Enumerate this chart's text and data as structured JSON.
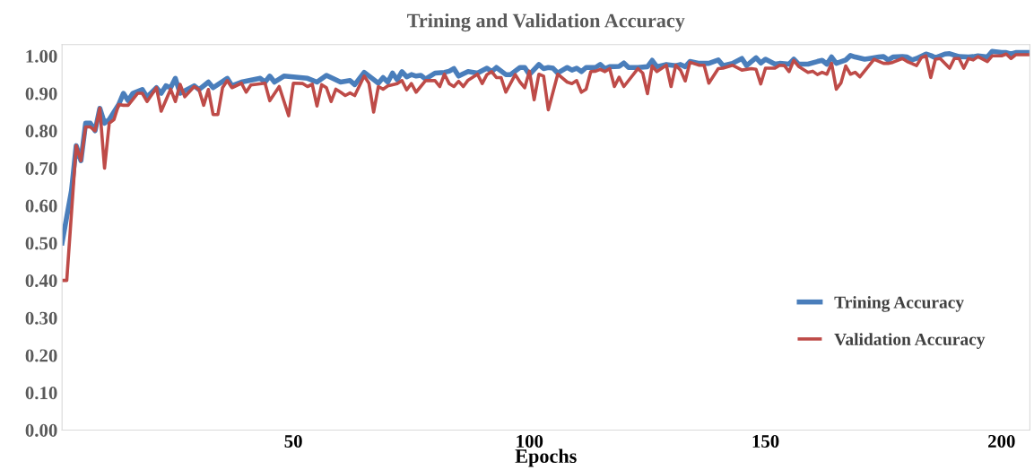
{
  "chart_data": {
    "type": "line",
    "title": "Trining and Validation Accuracy",
    "xlabel": "Epochs",
    "xlim": [
      1,
      206
    ],
    "xticks": [
      50,
      100,
      150,
      200
    ],
    "ylim": [
      0,
      1.03
    ],
    "yticks": [
      {
        "value": 0,
        "label": "0.00"
      },
      {
        "value": 0.1,
        "label": "0.10"
      },
      {
        "value": 0.2,
        "label": "0.20"
      },
      {
        "value": 0.3,
        "label": "0.30"
      },
      {
        "value": 0.4,
        "label": "0.40"
      },
      {
        "value": 0.5,
        "label": "0.50"
      },
      {
        "value": 0.6,
        "label": "0.60"
      },
      {
        "value": 0.7,
        "label": "0.70"
      },
      {
        "value": 0.8,
        "label": "0.80"
      },
      {
        "value": 0.9,
        "label": "0.90"
      },
      {
        "value": 1.0,
        "label": "1.00"
      }
    ],
    "grid": false,
    "legend": "lower right",
    "marker": "none",
    "line_style": "solid",
    "series": [
      {
        "name": "Trining Accuracy",
        "color": "#4a7ebb",
        "x": [
          1,
          3,
          4,
          5,
          6,
          7,
          8,
          9,
          10,
          11,
          13,
          14,
          15,
          16,
          18,
          19,
          21,
          22,
          23,
          24,
          25,
          26,
          29,
          30,
          32,
          33,
          36,
          37,
          39,
          43,
          44,
          45,
          46,
          48,
          53,
          55,
          57,
          60,
          62,
          63,
          65,
          68,
          69,
          70,
          71,
          72,
          73,
          74,
          75,
          76,
          77,
          78,
          80,
          82,
          83,
          84,
          85,
          87,
          89,
          91,
          92,
          93,
          95,
          96,
          98,
          99,
          100,
          102,
          103,
          104,
          105,
          106,
          108,
          109,
          110,
          111,
          112,
          114,
          115,
          116,
          117,
          119,
          120,
          121,
          123,
          125,
          126,
          127,
          129,
          131,
          132,
          133,
          134,
          136,
          138,
          140,
          141,
          143,
          145,
          146,
          148,
          149,
          150,
          152,
          153,
          155,
          156,
          157,
          159,
          161,
          162,
          163,
          164,
          165,
          167,
          168,
          169,
          171,
          172,
          174,
          175,
          176,
          177,
          179,
          180,
          181,
          182,
          184,
          185,
          186,
          188,
          189,
          191,
          193,
          194,
          195,
          197,
          198,
          200,
          201,
          202,
          203,
          206
        ],
        "values": [
          0.5,
          0.64,
          0.76,
          0.72,
          0.82,
          0.82,
          0.8,
          0.86,
          0.82,
          0.83,
          0.87,
          0.9,
          0.88,
          0.9,
          0.91,
          0.89,
          0.915,
          0.9,
          0.92,
          0.915,
          0.94,
          0.9,
          0.92,
          0.91,
          0.93,
          0.915,
          0.94,
          0.92,
          0.93,
          0.94,
          0.93,
          0.946,
          0.93,
          0.946,
          0.94,
          0.93,
          0.948,
          0.93,
          0.934,
          0.923,
          0.956,
          0.927,
          0.942,
          0.93,
          0.954,
          0.936,
          0.958,
          0.944,
          0.95,
          0.946,
          0.948,
          0.938,
          0.954,
          0.956,
          0.959,
          0.966,
          0.946,
          0.958,
          0.954,
          0.967,
          0.958,
          0.969,
          0.95,
          0.95,
          0.969,
          0.969,
          0.95,
          0.977,
          0.966,
          0.969,
          0.967,
          0.954,
          0.969,
          0.962,
          0.967,
          0.958,
          0.969,
          0.969,
          0.977,
          0.966,
          0.971,
          0.972,
          0.981,
          0.969,
          0.969,
          0.971,
          0.988,
          0.971,
          0.977,
          0.974,
          0.977,
          0.971,
          0.985,
          0.98,
          0.98,
          0.989,
          0.974,
          0.98,
          0.993,
          0.974,
          0.995,
          0.981,
          0.991,
          0.978,
          0.98,
          0.978,
          0.991,
          0.978,
          0.978,
          0.985,
          0.988,
          0.978,
          0.997,
          0.98,
          0.989,
          1.001,
          0.997,
          0.991,
          0.993,
          0.997,
          0.998,
          0.989,
          0.997,
          0.998,
          0.997,
          0.989,
          0.993,
          1.005,
          1.001,
          0.995,
          1.005,
          1.006,
          0.998,
          0.997,
          0.998,
          1.0,
          0.997,
          1.012,
          1.009,
          1.009,
          1.005,
          1.009,
          1.009
        ]
      },
      {
        "name": "Validation Accuracy",
        "color": "#be4b48",
        "x": [
          1,
          2,
          4,
          5,
          6,
          7,
          8,
          9,
          10,
          11,
          12,
          13,
          14,
          15,
          17,
          18,
          19,
          21,
          22,
          24,
          25,
          26,
          27,
          29,
          30,
          31,
          32,
          33,
          34,
          35,
          36,
          37,
          39,
          40,
          41,
          44,
          45,
          47,
          49,
          50,
          52,
          53,
          54,
          55,
          56,
          57,
          58,
          59,
          60,
          61,
          62,
          63,
          65,
          66,
          67,
          68,
          69,
          70,
          72,
          73,
          74,
          75,
          76,
          78,
          80,
          81,
          82,
          83,
          84,
          85,
          86,
          87,
          89,
          90,
          91,
          92,
          93,
          94,
          95,
          97,
          98,
          99,
          100,
          101,
          102,
          103,
          104,
          106,
          108,
          109,
          110,
          111,
          112,
          113,
          114,
          115,
          116,
          117,
          118,
          119,
          120,
          123,
          124,
          125,
          126,
          127,
          129,
          130,
          131,
          132,
          133,
          134,
          136,
          137,
          138,
          140,
          141,
          143,
          145,
          147,
          148,
          149,
          150,
          152,
          153,
          154,
          155,
          156,
          157,
          159,
          160,
          161,
          162,
          163,
          164,
          165,
          166,
          167,
          168,
          169,
          170,
          173,
          175,
          176,
          177,
          179,
          180,
          182,
          183,
          184,
          185,
          186,
          187,
          189,
          190,
          191,
          192,
          193,
          194,
          195,
          197,
          198,
          200,
          201,
          202,
          203,
          206
        ],
        "values": [
          0.4,
          0.4,
          0.76,
          0.72,
          0.81,
          0.81,
          0.8,
          0.86,
          0.7,
          0.82,
          0.83,
          0.87,
          0.868,
          0.868,
          0.9,
          0.9,
          0.878,
          0.915,
          0.852,
          0.911,
          0.878,
          0.924,
          0.891,
          0.918,
          0.91,
          0.868,
          0.91,
          0.843,
          0.843,
          0.915,
          0.934,
          0.915,
          0.927,
          0.903,
          0.922,
          0.927,
          0.88,
          0.918,
          0.84,
          0.927,
          0.926,
          0.918,
          0.924,
          0.866,
          0.923,
          0.915,
          0.878,
          0.911,
          0.903,
          0.894,
          0.901,
          0.894,
          0.946,
          0.927,
          0.85,
          0.918,
          0.911,
          0.92,
          0.926,
          0.934,
          0.909,
          0.926,
          0.903,
          0.934,
          0.934,
          0.918,
          0.951,
          0.926,
          0.918,
          0.932,
          0.918,
          0.935,
          0.951,
          0.926,
          0.95,
          0.958,
          0.942,
          0.942,
          0.903,
          0.95,
          0.93,
          0.915,
          0.959,
          0.883,
          0.951,
          0.946,
          0.856,
          0.951,
          0.93,
          0.926,
          0.934,
          0.903,
          0.911,
          0.958,
          0.959,
          0.964,
          0.958,
          0.966,
          0.918,
          0.943,
          0.918,
          0.966,
          0.954,
          0.899,
          0.973,
          0.958,
          0.975,
          0.918,
          0.975,
          0.962,
          0.933,
          0.983,
          0.975,
          0.975,
          0.927,
          0.966,
          0.967,
          0.975,
          0.962,
          0.966,
          0.964,
          0.925,
          0.967,
          0.967,
          0.975,
          0.974,
          0.958,
          0.988,
          0.972,
          0.956,
          0.959,
          0.95,
          0.956,
          0.951,
          0.98,
          0.911,
          0.928,
          0.973,
          0.951,
          0.956,
          0.944,
          0.991,
          0.98,
          0.98,
          0.983,
          0.993,
          0.985,
          0.974,
          0.995,
          1.0,
          0.942,
          0.991,
          0.993,
          0.967,
          0.993,
          0.993,
          0.967,
          0.993,
          0.989,
          0.998,
          0.985,
          1.0,
          1.0,
          1.005,
          0.993,
          1.003,
          1.003
        ]
      }
    ]
  }
}
